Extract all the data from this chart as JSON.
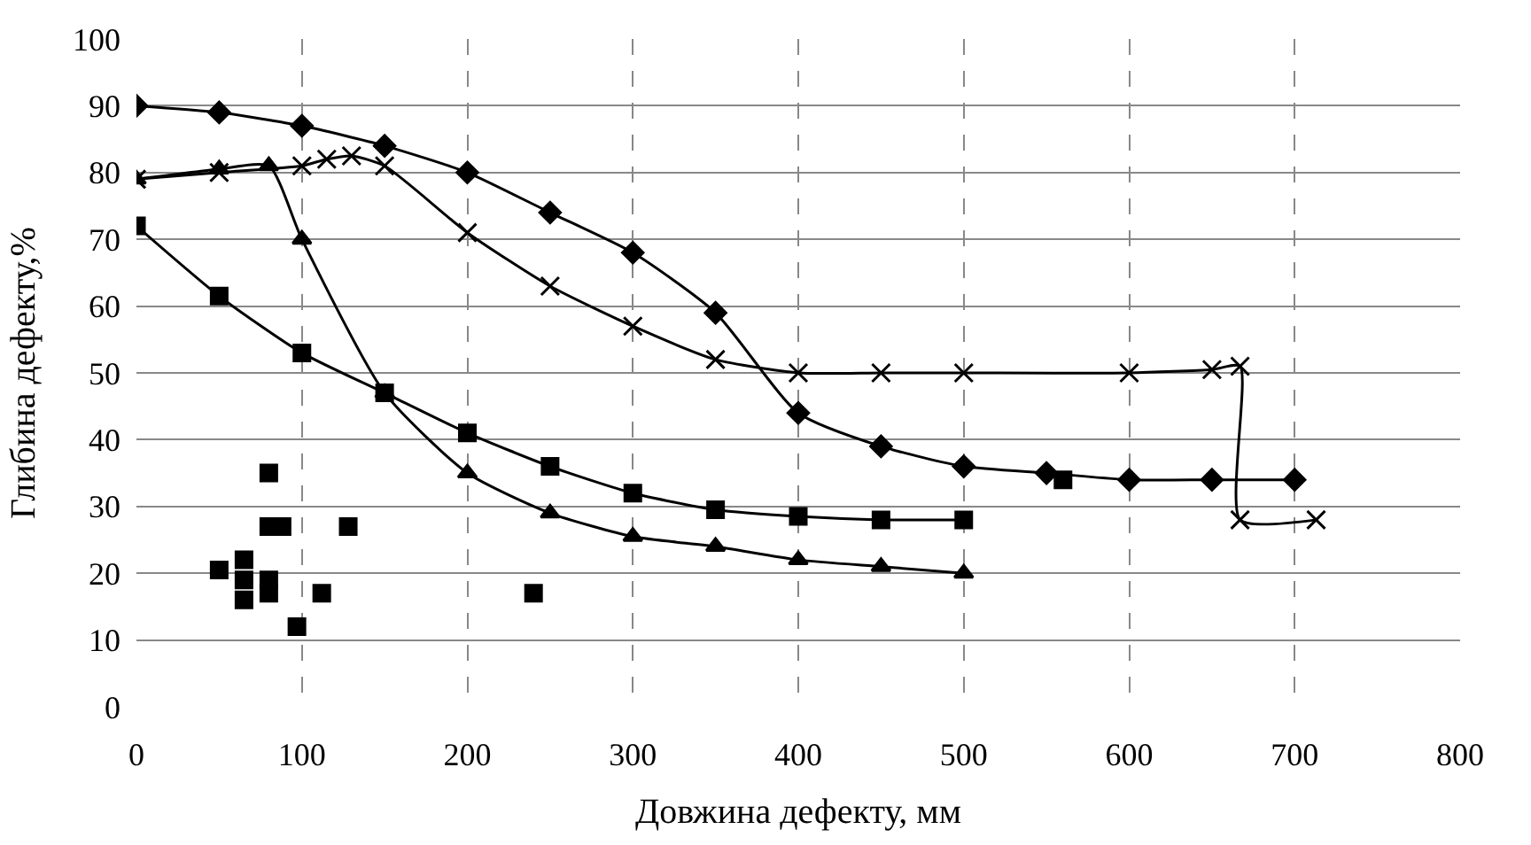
{
  "chart_data": {
    "type": "line",
    "xlabel": "Довжина дефекту, мм",
    "ylabel": "Глибина дефекту,%",
    "xlim": [
      0,
      800
    ],
    "xticks": [
      0,
      100,
      200,
      300,
      400,
      500,
      600,
      700,
      800
    ],
    "ylim": [
      0,
      100
    ],
    "yticks": [
      0,
      10,
      20,
      30,
      40,
      50,
      60,
      70,
      80,
      90,
      100
    ],
    "grid": true,
    "series": [
      {
        "color": "#000000",
        "marker": "diamond",
        "x": [
          0,
          50,
          100,
          150,
          200,
          250,
          300,
          350,
          400,
          450,
          500,
          550,
          600,
          650,
          700
        ],
        "values": [
          90,
          89,
          87,
          84,
          80,
          74,
          68,
          59,
          44,
          39,
          36,
          35,
          34,
          34,
          34
        ]
      },
      {
        "color": "#000000",
        "marker": "cross",
        "x": [
          0,
          50,
          100,
          115,
          130,
          150,
          200,
          250,
          300,
          350,
          400,
          450,
          500,
          600,
          650,
          667,
          667,
          713
        ],
        "values": [
          79,
          80,
          81,
          82,
          82.5,
          81,
          71,
          63,
          57,
          52,
          50,
          50,
          50,
          50,
          50.5,
          51,
          28,
          28
        ]
      },
      {
        "color": "#000000",
        "marker": "triangle",
        "x": [
          0,
          50,
          80,
          100,
          150,
          200,
          250,
          300,
          350,
          400,
          450,
          500
        ],
        "values": [
          79,
          80.5,
          81,
          70,
          47,
          35,
          29,
          25.5,
          24,
          22,
          21,
          20
        ]
      },
      {
        "color": "#000000",
        "marker": "square",
        "x": [
          0,
          50,
          100,
          150,
          200,
          250,
          300,
          350,
          400,
          450,
          500
        ],
        "values": [
          72,
          61.5,
          53,
          47,
          41,
          36,
          32,
          29.5,
          28.5,
          28,
          28
        ]
      },
      {
        "type": "scatter",
        "color": "#000000",
        "marker": "square",
        "x": [
          50,
          65,
          65,
          65,
          80,
          80,
          88,
          80,
          80,
          97,
          112,
          128,
          240,
          560
        ],
        "values": [
          20.5,
          22,
          19,
          16,
          35,
          27,
          27,
          19,
          17,
          12,
          17,
          27,
          17,
          34
        ]
      }
    ]
  }
}
